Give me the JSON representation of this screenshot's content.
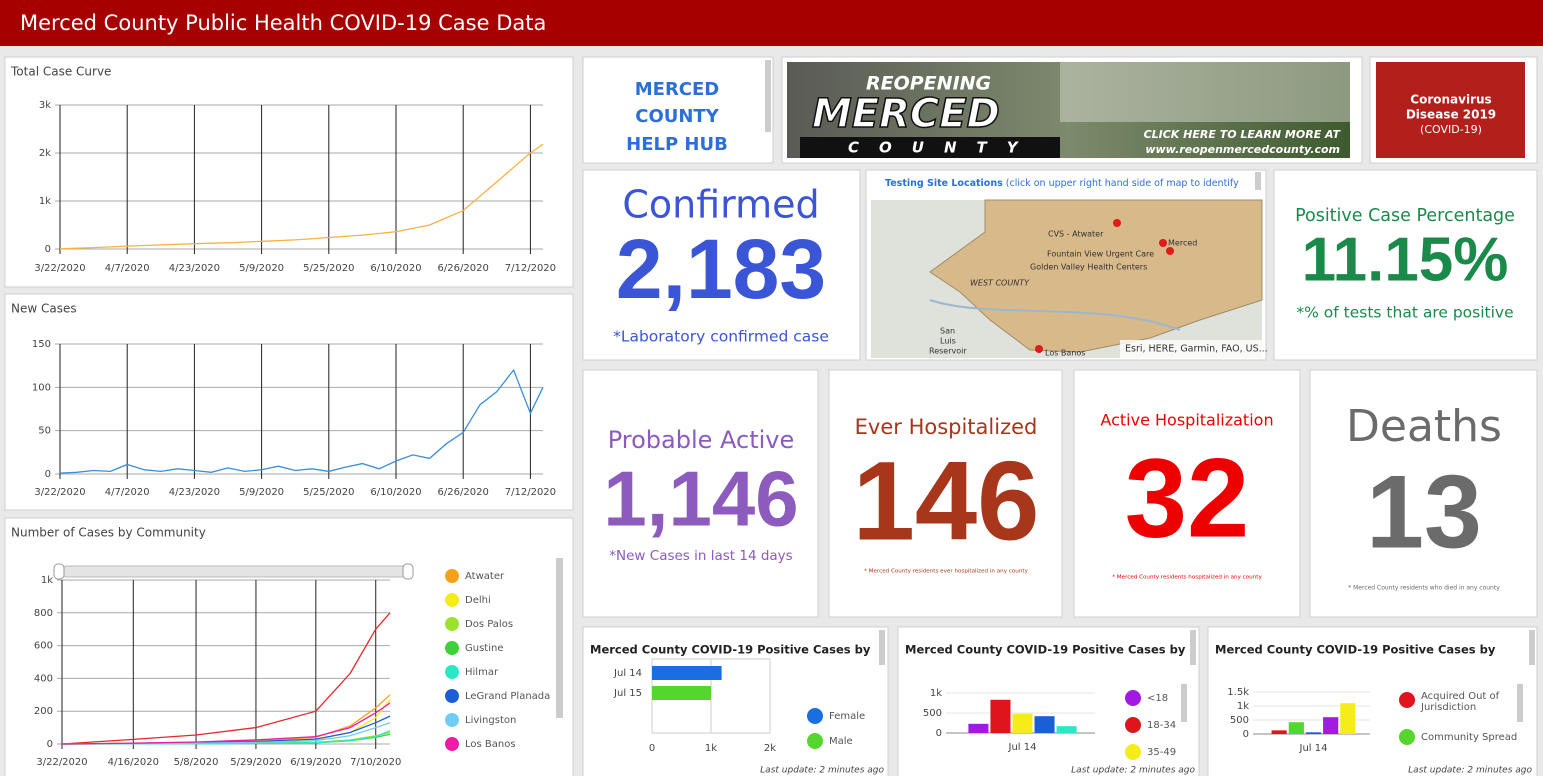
{
  "header": {
    "title": "Merced County Public Health COVID-19 Case Data"
  },
  "help_hub": {
    "lines": [
      "MERCED",
      "COUNTY",
      "HELP HUB"
    ]
  },
  "banner": {
    "line1": "REOPENING",
    "line2": "MERCED",
    "line3": "COUNTY",
    "cta": "CLICK HERE TO LEARN MORE AT",
    "url": "www.reopenmercedcounty.com"
  },
  "covid_image": {
    "lines": [
      "Coronavirus",
      "Disease 2019",
      "(COVID-19)"
    ]
  },
  "map": {
    "header_bold": "Testing Site Locations",
    "header_rest": "(click on upper right hand side of map to identify",
    "labels": [
      "CVS - Atwater",
      "Merced",
      "Fountain View Urgent Care",
      "Golden Valley Health Centers",
      "WEST COUNTY",
      "San",
      "Luis",
      "Reservoir",
      "Los Banos"
    ],
    "attribution": "Esri, HERE, Garmin, FAO, US..."
  },
  "cards": [
    {
      "title": "Confirmed",
      "value": "2,183",
      "note": "*Laboratory confirmed case"
    },
    {
      "title": "Positive Case Percentage",
      "value": "11.15%",
      "note": "*% of tests that are positive"
    },
    {
      "title": "Probable Active",
      "value": "1,146",
      "note": "*New Cases in last 14 days"
    },
    {
      "title": "Ever Hospitalized",
      "value": "146",
      "note": "* Merced County residents ever hospitalized in any county"
    },
    {
      "title": "Active Hospitalization",
      "value": "32",
      "note": "* Merced County residents hospitalized in any county"
    },
    {
      "title": "Deaths",
      "value": "13",
      "note": "* Merced County residents who died in any county"
    }
  ],
  "chart_data": [
    {
      "type": "line",
      "title": "Total Case Curve",
      "x": [
        "3/22/2020",
        "3/30/2020",
        "4/7/2020",
        "4/15/2020",
        "4/23/2020",
        "5/1/2020",
        "5/9/2020",
        "5/17/2020",
        "5/25/2020",
        "6/2/2020",
        "6/10/2020",
        "6/18/2020",
        "6/26/2020",
        "7/4/2020",
        "7/12/2020",
        "7/15/2020"
      ],
      "series": [
        {
          "color": "#f5b342",
          "values": [
            5,
            30,
            60,
            85,
            110,
            130,
            160,
            190,
            240,
            290,
            360,
            500,
            800,
            1400,
            2000,
            2183
          ]
        }
      ],
      "xlim": [
        "3/22/2020",
        "7/15/2020"
      ],
      "xticks": [
        "3/22/2020",
        "4/7/2020",
        "4/23/2020",
        "5/9/2020",
        "5/25/2020",
        "6/10/2020",
        "6/26/2020",
        "7/12/2020"
      ],
      "ylim": [
        0,
        3000
      ],
      "yticks": [
        0,
        {
          "value": 1000,
          "label": "1k"
        },
        {
          "value": 2000,
          "label": "2k"
        },
        {
          "value": 3000,
          "label": "3k"
        }
      ],
      "grid": true
    },
    {
      "type": "line",
      "title": "New Cases",
      "x": [
        "3/22/2020",
        "3/26/2020",
        "3/30/2020",
        "4/3/2020",
        "4/7/2020",
        "4/11/2020",
        "4/15/2020",
        "4/19/2020",
        "4/23/2020",
        "4/27/2020",
        "5/1/2020",
        "5/5/2020",
        "5/9/2020",
        "5/13/2020",
        "5/17/2020",
        "5/21/2020",
        "5/25/2020",
        "5/29/2020",
        "6/2/2020",
        "6/6/2020",
        "6/10/2020",
        "6/14/2020",
        "6/18/2020",
        "6/22/2020",
        "6/26/2020",
        "6/30/2020",
        "7/4/2020",
        "7/8/2020",
        "7/12/2020",
        "7/15/2020"
      ],
      "series": [
        {
          "color": "#3a8fd6",
          "values": [
            1,
            2,
            4,
            3,
            11,
            5,
            3,
            6,
            4,
            2,
            7,
            3,
            5,
            9,
            4,
            6,
            3,
            8,
            12,
            6,
            15,
            22,
            18,
            35,
            48,
            80,
            95,
            120,
            70,
            100
          ]
        }
      ],
      "xlim": [
        "3/22/2020",
        "7/15/2020"
      ],
      "xticks": [
        "3/22/2020",
        "4/7/2020",
        "4/23/2020",
        "5/9/2020",
        "5/25/2020",
        "6/10/2020",
        "6/26/2020",
        "7/12/2020"
      ],
      "ylim": [
        0,
        150
      ],
      "yticks": [
        0,
        50,
        100,
        150
      ],
      "grid": true
    },
    {
      "type": "line",
      "title": "Number of Cases by Community",
      "legend": "right",
      "x": [
        "3/22/2020",
        "4/16/2020",
        "5/8/2020",
        "5/29/2020",
        "6/19/2020",
        "7/1/2020",
        "7/10/2020",
        "7/15/2020"
      ],
      "series": [
        {
          "color": "#e8262b",
          "values": [
            0,
            28,
            55,
            100,
            200,
            430,
            700,
            800
          ]
        },
        {
          "name": "Atwater",
          "color": "#f7a11a",
          "values": [
            0,
            5,
            10,
            18,
            40,
            110,
            220,
            300
          ]
        },
        {
          "name": "Delhi",
          "color": "#f5ec1a",
          "values": [
            0,
            2,
            5,
            10,
            25,
            70,
            160,
            270
          ]
        },
        {
          "name": "Dos Palos",
          "color": "#9be22d",
          "values": [
            0,
            1,
            3,
            5,
            10,
            25,
            50,
            70
          ]
        },
        {
          "name": "Gustine",
          "color": "#3fd13a",
          "values": [
            0,
            1,
            2,
            4,
            8,
            20,
            40,
            60
          ]
        },
        {
          "name": "Hilmar",
          "color": "#2be8c4",
          "values": [
            0,
            1,
            2,
            3,
            8,
            20,
            45,
            80
          ]
        },
        {
          "name": "LeGrand Planada",
          "color": "#1b5fd6",
          "values": [
            0,
            3,
            8,
            15,
            30,
            70,
            130,
            170
          ]
        },
        {
          "name": "Livingston",
          "color": "#6fcdf5",
          "values": [
            0,
            2,
            5,
            10,
            20,
            50,
            100,
            130
          ]
        },
        {
          "name": "Los Banos",
          "color": "#f01aa6",
          "values": [
            0,
            5,
            12,
            25,
            45,
            100,
            190,
            250
          ]
        }
      ],
      "xlim": [
        "3/22/2020",
        "7/15/2020"
      ],
      "xticks": [
        "3/22/2020",
        "4/16/2020",
        "5/8/2020",
        "5/29/2020",
        "6/19/2020",
        "7/10/2020"
      ],
      "ylim": [
        0,
        1000
      ],
      "yticks": [
        0,
        200,
        400,
        600,
        800,
        {
          "value": 1000,
          "label": "1k"
        }
      ],
      "grid": true
    },
    {
      "type": "bar",
      "orientation": "horizontal",
      "title": "Merced County COVID-19 Positive Cases by",
      "categories": [
        "Jul 14",
        "Jul 15"
      ],
      "series": [
        {
          "name": "Female",
          "color": "#1a6ee0",
          "values": [
            1180,
            null
          ]
        },
        {
          "name": "Male",
          "color": "#54d62c",
          "values": [
            null,
            1000
          ]
        }
      ],
      "xlim": [
        0,
        2000
      ],
      "xticks": [
        0,
        {
          "value": 1000,
          "label": "1k"
        },
        {
          "value": 2000,
          "label": "2k"
        }
      ],
      "legend": "right",
      "footer": "Last update: 2 minutes ago"
    },
    {
      "type": "bar",
      "orientation": "vertical",
      "title": "Merced County COVID-19 Positive Cases by",
      "categories": [
        "Jul 14"
      ],
      "series": [
        {
          "name": "<18",
          "color": "#a21ae0",
          "values": [
            230
          ]
        },
        {
          "name": "18-34",
          "color": "#e0141c",
          "values": [
            830
          ]
        },
        {
          "name": "35-49",
          "color": "#f5ec1a",
          "values": [
            480
          ]
        },
        {
          "color": "#1b5fd6",
          "values": [
            420
          ]
        },
        {
          "color": "#2be8c4",
          "values": [
            170
          ]
        }
      ],
      "ylim": [
        0,
        1000
      ],
      "yticks": [
        0,
        500,
        {
          "value": 1000,
          "label": "1k"
        }
      ],
      "legend": "right",
      "footer": "Last update: 2 minutes ago"
    },
    {
      "type": "bar",
      "orientation": "vertical",
      "title": "Merced County COVID-19 Positive Cases by",
      "categories": [
        "Jul 14"
      ],
      "series": [
        {
          "name": "Acquired Out of Jurisdiction",
          "color": "#e0141c",
          "values": [
            130
          ]
        },
        {
          "name": "Community Spread",
          "color": "#54d62c",
          "values": [
            420
          ]
        },
        {
          "color": "#1b5fd6",
          "values": [
            60
          ]
        },
        {
          "color": "#a21ae0",
          "values": [
            600
          ]
        },
        {
          "color": "#f5ec1a",
          "values": [
            1100
          ]
        }
      ],
      "ylim": [
        0,
        1500
      ],
      "yticks": [
        0,
        500,
        {
          "value": 1000,
          "label": "1k"
        },
        {
          "value": 1500,
          "label": "1.5k"
        }
      ],
      "legend": "right",
      "footer": "Last update: 2 minutes ago"
    }
  ]
}
